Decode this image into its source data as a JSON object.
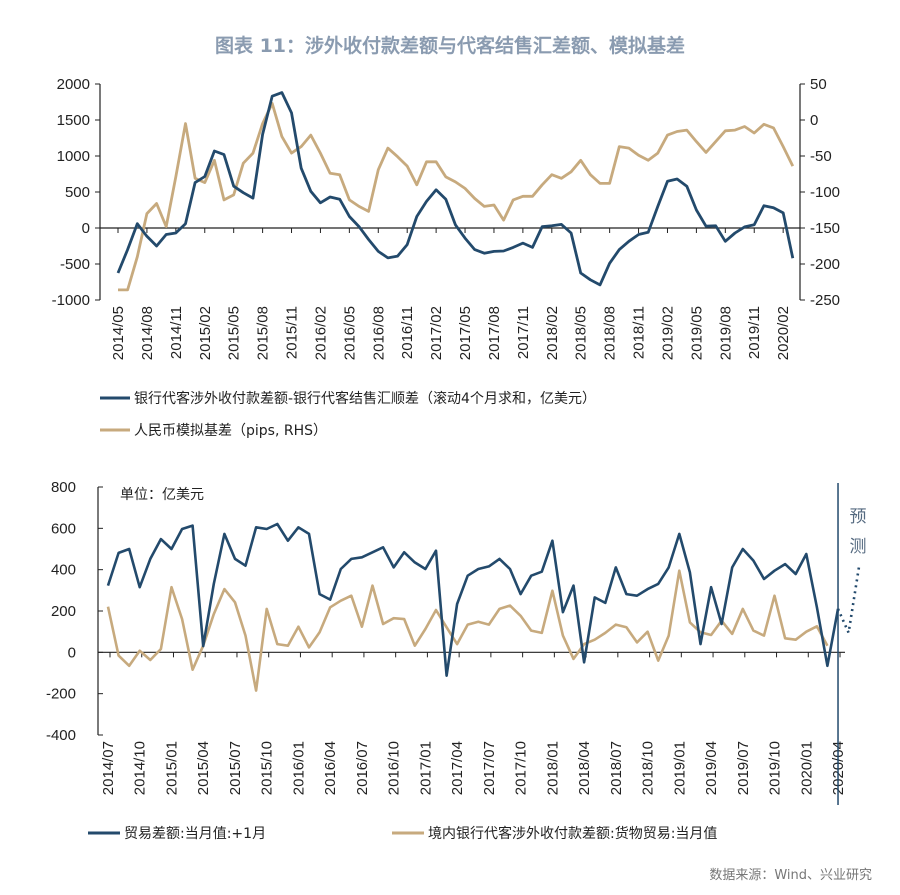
{
  "title": "图表 11：涉外收付款差额与代客结售汇差额、模拟基差",
  "source": "数据来源：Wind、兴业研究",
  "colors": {
    "blue": "#234a6c",
    "gold": "#c7aa7e",
    "title": "#8a9bb0"
  },
  "chart_data": [
    {
      "type": "line",
      "title": "",
      "left_axis": {
        "ylim": [
          -1000,
          2000
        ],
        "ticks": [
          2000,
          1500,
          1000,
          500,
          0,
          -500,
          -1000
        ]
      },
      "right_axis": {
        "ylim": [
          -250,
          50
        ],
        "ticks": [
          50,
          0,
          -50,
          -100,
          -150,
          -200,
          -250
        ]
      },
      "x_start": "2014/05",
      "xtick_labels": [
        "2014/05",
        "2014/08",
        "2014/11",
        "2015/02",
        "2015/05",
        "2015/08",
        "2015/11",
        "2016/02",
        "2016/05",
        "2016/08",
        "2016/11",
        "2017/02",
        "2017/05",
        "2017/08",
        "2017/11",
        "2018/02",
        "2018/05",
        "2018/08",
        "2018/11",
        "2019/02",
        "2019/05",
        "2019/08",
        "2019/11",
        "2020/02"
      ],
      "series": [
        {
          "name": "银行代客涉外收付款差额-银行代客结售汇顺差（滚动4个月求和，亿美元）",
          "axis": "left",
          "color": "#234a6c",
          "values": [
            -625,
            -300,
            60,
            -115,
            -250,
            -90,
            -70,
            60,
            630,
            715,
            1070,
            1020,
            580,
            490,
            415,
            1300,
            1830,
            1880,
            1600,
            830,
            510,
            350,
            430,
            400,
            160,
            20,
            -160,
            -325,
            -415,
            -390,
            -230,
            160,
            370,
            530,
            400,
            45,
            -140,
            -300,
            -350,
            -325,
            -320,
            -270,
            -210,
            -270,
            20,
            30,
            50,
            -70,
            -625,
            -720,
            -790,
            -490,
            -300,
            -185,
            -90,
            -60,
            300,
            650,
            680,
            580,
            250,
            25,
            30,
            -185,
            -70,
            15,
            45,
            310,
            280,
            210,
            -420
          ]
        },
        {
          "name": "人民币模拟基差（pips, RHS）",
          "axis": "right",
          "color": "#c7aa7e",
          "values": [
            -236,
            -236,
            -190,
            -130,
            -116,
            -148,
            -79,
            -5,
            -81,
            -87,
            -56,
            -111,
            -104,
            -60,
            -46,
            -5,
            23,
            -23,
            -46,
            -37,
            -21,
            -46,
            -74,
            -76,
            -111,
            -120,
            -127,
            -69,
            -39,
            -51,
            -64,
            -90,
            -58,
            -58,
            -79,
            -86,
            -95,
            -109,
            -120,
            -118,
            -139,
            -111,
            -106,
            -106,
            -90,
            -76,
            -81,
            -72,
            -56,
            -76,
            -88,
            -88,
            -37,
            -39,
            -49,
            -56,
            -46,
            -21,
            -16,
            -14,
            -30,
            -45,
            -30,
            -15,
            -14,
            -9,
            -18,
            -6,
            -11,
            -37,
            -64
          ]
        }
      ]
    },
    {
      "type": "line",
      "unit_label": "单位：亿美元",
      "forecast_label": [
        "预",
        "测"
      ],
      "ylim": [
        -400,
        800
      ],
      "yticks": [
        800,
        600,
        400,
        200,
        0,
        -200,
        -400
      ],
      "x_start": "2014/07",
      "xtick_labels": [
        "2014/07",
        "2014/10",
        "2015/01",
        "2015/04",
        "2015/07",
        "2015/10",
        "2016/01",
        "2016/04",
        "2016/07",
        "2016/10",
        "2017/01",
        "2017/04",
        "2017/07",
        "2017/10",
        "2018/01",
        "2018/04",
        "2018/07",
        "2018/10",
        "2019/01",
        "2019/04",
        "2019/07",
        "2019/10",
        "2020/01",
        "2020/04"
      ],
      "forecast_start": "2020/04",
      "series": [
        {
          "name": "贸易差额:当月值:+1月",
          "color": "#234a6c",
          "values": [
            323,
            481,
            500,
            315,
            452,
            548,
            500,
            597,
            613,
            30,
            331,
            573,
            452,
            419,
            605,
            597,
            621,
            540,
            605,
            573,
            282,
            255,
            403,
            452,
            460,
            484,
            508,
            411,
            484,
            435,
            403,
            492,
            -113,
            234,
            371,
            403,
            416,
            452,
            403,
            282,
            371,
            390,
            540,
            194,
            323,
            -48,
            266,
            239,
            411,
            282,
            274,
            306,
            331,
            411,
            573,
            387,
            40,
            315,
            137,
            411,
            500,
            444,
            355,
            395,
            427,
            379,
            476,
            218,
            -65,
            210
          ],
          "forecast_values": [
            210,
            95,
            420
          ]
        },
        {
          "name": "境内银行代客涉外收付款差额:货物贸易:当月值",
          "color": "#c7aa7e",
          "values": [
            221,
            -16,
            -65,
            8,
            -37,
            16,
            315,
            161,
            -84,
            32,
            185,
            306,
            242,
            81,
            -185,
            210,
            40,
            32,
            124,
            24,
            97,
            218,
            250,
            274,
            124,
            323,
            137,
            165,
            161,
            32,
            113,
            205,
            121,
            40,
            134,
            148,
            134,
            210,
            226,
            177,
            105,
            94,
            298,
            81,
            -32,
            40,
            61,
            94,
            134,
            121,
            48,
            100,
            -40,
            81,
            395,
            145,
            97,
            84,
            153,
            89,
            210,
            105,
            81,
            274,
            68,
            61,
            100,
            126,
            32
          ]
        }
      ]
    }
  ]
}
